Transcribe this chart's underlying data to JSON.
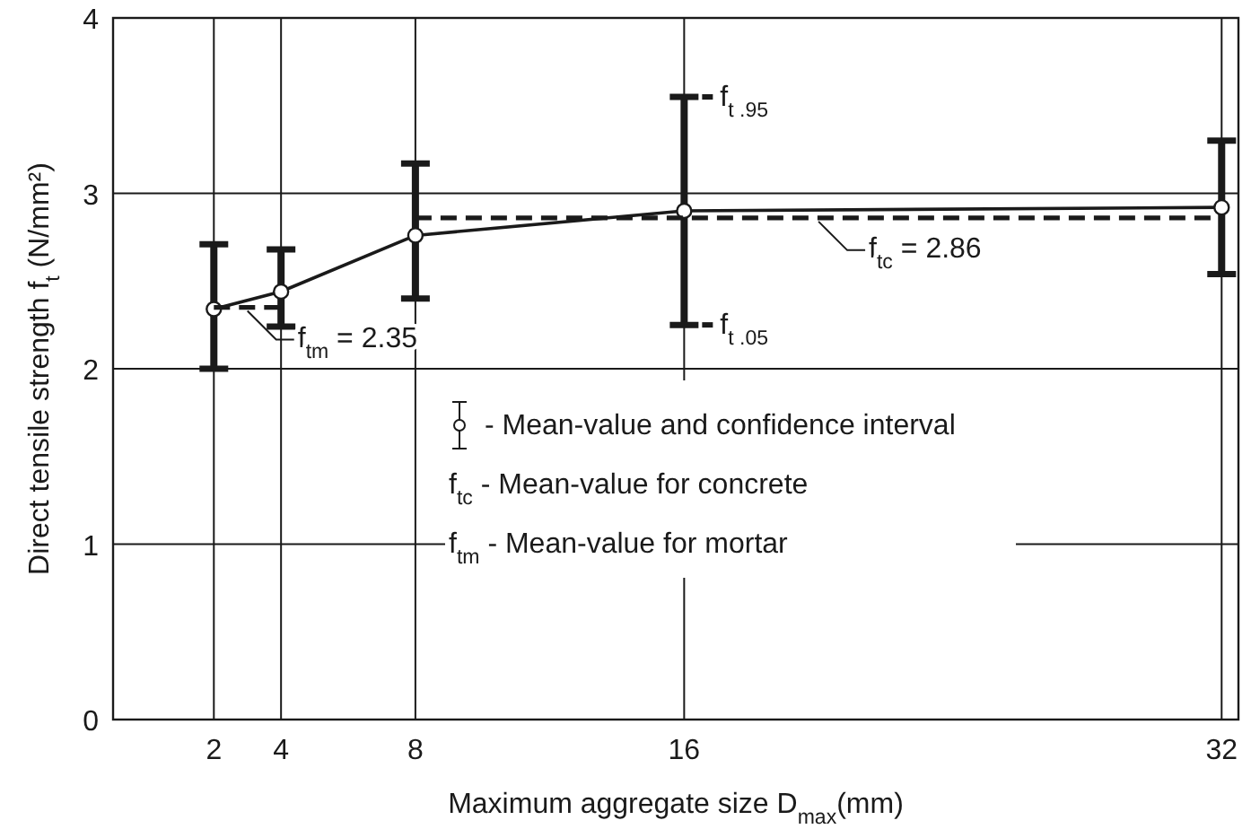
{
  "chart_data": {
    "type": "line",
    "xlabel": "Maximum aggregate size D$_{max}$(mm)",
    "ylabel": "Direct tensile strength f$_{t}$ (N/mm²)",
    "xlim": [
      -1,
      32.5
    ],
    "xticks": [
      2,
      4,
      8,
      16,
      32
    ],
    "ylim": [
      0,
      4
    ],
    "yticks": [
      0,
      1,
      2,
      3,
      4
    ],
    "grid": true,
    "series": [
      {
        "color": "#1a1a1a",
        "marker": "circle",
        "line_style": "solid",
        "x": [
          2,
          4,
          8,
          16,
          32
        ],
        "values": [
          2.34,
          2.44,
          2.76,
          2.9,
          2.92
        ],
        "errors": [
          [
            2.0,
            2.71
          ],
          [
            2.24,
            2.68
          ],
          [
            2.4,
            3.17
          ],
          [
            2.25,
            3.55
          ],
          [
            2.54,
            3.3
          ]
        ]
      },
      {
        "color": "#1a1a1a",
        "marker": "none",
        "line_style": "dashed",
        "x": [
          8,
          32
        ],
        "values": [
          2.86,
          2.86
        ]
      },
      {
        "color": "#1a1a1a",
        "marker": "none",
        "line_style": "dashed",
        "x": [
          2,
          4
        ],
        "values": [
          2.35,
          2.35
        ]
      }
    ],
    "annotations": [
      "- Mean-value and confidence interval",
      "f$_{tc}$ - Mean-value for concrete",
      "f$_{tm}$ - Mean-value for mortar",
      {
        "text": "f$_{t .95}$",
        "x": 16,
        "y": 3.55
      },
      {
        "text": "f$_{t .05}$",
        "x": 16,
        "y": 2.25
      },
      {
        "text": "f$_{tc}$ = 2.86",
        "x": 20,
        "y": 2.86
      },
      {
        "text": "f$_{tm}$ = 2.35",
        "x": 3,
        "y": 2.35
      }
    ]
  }
}
